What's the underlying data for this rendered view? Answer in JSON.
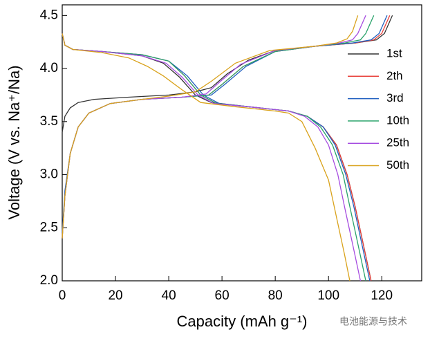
{
  "chart_data": {
    "type": "line",
    "x_label": "Capacity (mAh g⁻¹)",
    "y_label": "Voltage (V vs. Na⁺/Na)",
    "watermark": "电池能源与技术",
    "xlim": [
      0,
      135
    ],
    "ylim": [
      2.0,
      4.6
    ],
    "xticks": [
      0,
      20,
      40,
      60,
      80,
      100,
      120
    ],
    "yticks": [
      {
        "value": 2,
        "label": "2.0"
      },
      2.5,
      {
        "value": 3,
        "label": "3.0"
      },
      3.5,
      {
        "value": 4,
        "label": "4.0"
      },
      4.5
    ],
    "legend": "right",
    "series": [
      {
        "name": "1st",
        "color": "#333333",
        "x": [
          0,
          1,
          3,
          6,
          12,
          25,
          40,
          50,
          56,
          62,
          70,
          80,
          95,
          110,
          118,
          121,
          124,
          null,
          0,
          1,
          4,
          15,
          30,
          38,
          44,
          50,
          56,
          70,
          85,
          92,
          98,
          103,
          107,
          110,
          113,
          116
        ],
        "values": [
          3.4,
          3.55,
          3.63,
          3.68,
          3.71,
          3.73,
          3.75,
          3.78,
          3.82,
          3.95,
          4.08,
          4.17,
          4.21,
          4.24,
          4.27,
          4.33,
          4.5,
          null,
          4.33,
          4.22,
          4.18,
          4.16,
          4.12,
          4.05,
          3.92,
          3.75,
          3.68,
          3.64,
          3.6,
          3.55,
          3.45,
          3.28,
          3.0,
          2.7,
          2.35,
          2.0
        ]
      },
      {
        "name": "2th",
        "color": "#e8413c",
        "x": [
          0,
          1,
          3,
          6,
          10,
          18,
          30,
          45,
          55,
          60,
          68,
          80,
          95,
          110,
          117,
          120,
          123,
          null,
          0,
          1,
          4,
          15,
          30,
          40,
          46,
          52,
          58,
          70,
          85,
          92,
          98,
          103,
          107,
          110,
          113,
          116
        ],
        "values": [
          2.4,
          2.8,
          3.2,
          3.45,
          3.58,
          3.67,
          3.71,
          3.73,
          3.75,
          3.85,
          4.02,
          4.16,
          4.21,
          4.24,
          4.27,
          4.33,
          4.5,
          null,
          4.33,
          4.22,
          4.18,
          4.16,
          4.13,
          4.07,
          3.93,
          3.75,
          3.67,
          3.64,
          3.6,
          3.55,
          3.45,
          3.28,
          3.0,
          2.7,
          2.35,
          2.0
        ]
      },
      {
        "name": "3rd",
        "color": "#1f5fbf",
        "x": [
          0,
          1,
          3,
          6,
          10,
          18,
          30,
          45,
          56,
          61,
          69,
          80,
          95,
          109,
          116,
          119,
          122,
          null,
          0,
          1,
          4,
          15,
          30,
          40,
          47,
          53,
          59,
          70,
          85,
          92,
          98,
          102.5,
          106.5,
          109.5,
          112.5,
          115.5
        ],
        "values": [
          2.45,
          2.85,
          3.2,
          3.45,
          3.58,
          3.67,
          3.71,
          3.73,
          3.75,
          3.85,
          4.02,
          4.16,
          4.21,
          4.24,
          4.27,
          4.33,
          4.5,
          null,
          4.33,
          4.22,
          4.18,
          4.16,
          4.13,
          4.07,
          3.93,
          3.75,
          3.67,
          3.64,
          3.6,
          3.55,
          3.45,
          3.28,
          3.0,
          2.7,
          2.35,
          2.0
        ]
      },
      {
        "name": "10th",
        "color": "#2aa36b",
        "x": [
          0,
          1,
          3,
          6,
          10,
          18,
          30,
          45,
          55,
          60,
          68,
          80,
          95,
          106,
          112,
          114,
          117,
          null,
          0,
          1,
          4,
          15,
          30,
          40,
          46,
          52,
          58,
          70,
          85,
          92,
          97,
          101.5,
          105.5,
          108,
          111,
          114
        ],
        "values": [
          2.4,
          2.8,
          3.2,
          3.45,
          3.58,
          3.67,
          3.71,
          3.73,
          3.75,
          3.85,
          4.02,
          4.16,
          4.21,
          4.24,
          4.27,
          4.33,
          4.5,
          null,
          4.33,
          4.22,
          4.18,
          4.16,
          4.13,
          4.07,
          3.93,
          3.75,
          3.67,
          3.64,
          3.6,
          3.55,
          3.45,
          3.28,
          3.0,
          2.7,
          2.35,
          2.0
        ]
      },
      {
        "name": "25th",
        "color": "#a64ce0",
        "x": [
          0,
          1,
          3,
          6,
          10,
          18,
          30,
          45,
          54,
          59,
          67,
          80,
          95,
          104,
          109,
          111,
          114,
          null,
          0,
          1,
          4,
          15,
          30,
          39,
          45,
          51,
          57,
          70,
          85,
          91,
          96,
          100,
          103.5,
          106,
          109,
          112
        ],
        "values": [
          2.4,
          2.8,
          3.2,
          3.45,
          3.58,
          3.67,
          3.71,
          3.73,
          3.76,
          3.87,
          4.04,
          4.17,
          4.21,
          4.24,
          4.27,
          4.33,
          4.5,
          null,
          4.33,
          4.22,
          4.18,
          4.16,
          4.12,
          4.05,
          3.92,
          3.75,
          3.67,
          3.64,
          3.6,
          3.55,
          3.45,
          3.28,
          3.0,
          2.7,
          2.35,
          2.0
        ]
      },
      {
        "name": "50th",
        "color": "#d9a21b",
        "x": [
          0,
          1,
          3,
          6,
          10,
          18,
          30,
          40,
          50,
          56,
          65,
          78,
          95,
          103,
          107,
          109,
          111,
          null,
          0,
          1,
          4,
          15,
          25,
          32,
          38,
          45,
          52,
          65,
          80,
          85,
          90,
          95,
          100,
          103,
          106,
          108
        ],
        "values": [
          2.4,
          2.8,
          3.2,
          3.45,
          3.58,
          3.67,
          3.71,
          3.74,
          3.78,
          3.88,
          4.05,
          4.17,
          4.21,
          4.24,
          4.28,
          4.35,
          4.5,
          null,
          4.33,
          4.22,
          4.18,
          4.15,
          4.1,
          4.02,
          3.93,
          3.8,
          3.68,
          3.64,
          3.6,
          3.58,
          3.5,
          3.25,
          2.95,
          2.6,
          2.25,
          2.0
        ]
      }
    ]
  }
}
